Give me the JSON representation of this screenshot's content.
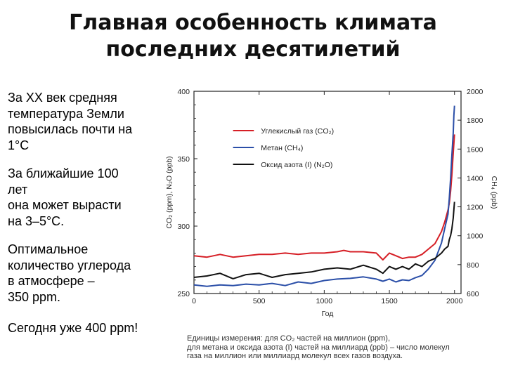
{
  "slide": {
    "title_line1": "Главная особенность климата",
    "title_line2": "последних десятилетий",
    "para1": "За XX век средняя\nтемпература Земли\nповысилась почти на\n1°С",
    "para2": "За ближайшие 100\nлет\nона может вырасти\nна 3–5°С.",
    "para3": "Оптимальное\nколичество углерода\nв атмосфере –\n350 ppm.",
    "para4": "Сегодня уже 400 ppm!",
    "footnote_line1": "Единицы измерения: для CO₂ частей на миллион (ppm),",
    "footnote_line2": "для метана и оксида азота (I) частей на миллиард (ppb) – число молекул",
    "footnote_line3": "газа на миллион или миллиард молекул всех газов воздуха."
  },
  "chart_data": {
    "type": "line",
    "xlabel": "Год",
    "ylabel_left": "CO₂ (ppm), N₂O (ppb)",
    "ylabel_right": "CH₄ (ppb)",
    "xlim": [
      0,
      2050
    ],
    "ylim_left": [
      250,
      400
    ],
    "ylim_right": [
      600,
      2000
    ],
    "x_ticks": [
      0,
      500,
      1000,
      1500,
      2000
    ],
    "y_ticks_left": [
      250,
      300,
      350,
      400
    ],
    "y_ticks_right": [
      600,
      800,
      1000,
      1200,
      1400,
      1600,
      1800,
      2000
    ],
    "legend_position": "top-center",
    "series": [
      {
        "name": "Углекислый газ (CO₂)",
        "axis": "left",
        "color": "#d61f26",
        "x": [
          0,
          100,
          200,
          300,
          400,
          500,
          600,
          700,
          800,
          900,
          1000,
          1100,
          1150,
          1200,
          1300,
          1400,
          1450,
          1500,
          1550,
          1600,
          1650,
          1700,
          1750,
          1800,
          1850,
          1900,
          1925,
          1950,
          1960,
          1970,
          1980,
          1990,
          2000
        ],
        "y": [
          278,
          277,
          279,
          277,
          278,
          279,
          279,
          280,
          279,
          280,
          280,
          281,
          282,
          281,
          281,
          280,
          275,
          280,
          278,
          276,
          277,
          277,
          279,
          283,
          287,
          296,
          303,
          312,
          317,
          326,
          338,
          354,
          368
        ]
      },
      {
        "name": "Метан (CH₄)",
        "axis": "right",
        "color": "#2b4fa8",
        "x": [
          0,
          100,
          200,
          300,
          400,
          500,
          600,
          700,
          800,
          900,
          1000,
          1100,
          1200,
          1300,
          1400,
          1450,
          1500,
          1550,
          1600,
          1650,
          1700,
          1750,
          1800,
          1850,
          1900,
          1925,
          1950,
          1960,
          1970,
          1980,
          1990,
          1995,
          2000
        ],
        "y": [
          660,
          650,
          660,
          655,
          665,
          660,
          670,
          655,
          680,
          670,
          690,
          700,
          705,
          715,
          700,
          685,
          700,
          680,
          695,
          690,
          710,
          725,
          770,
          830,
          950,
          1050,
          1150,
          1260,
          1400,
          1560,
          1710,
          1830,
          1900
        ]
      },
      {
        "name": "Оксид азота (I) (N₂O)",
        "axis": "left",
        "color": "#111111",
        "x": [
          0,
          100,
          200,
          300,
          400,
          500,
          600,
          700,
          800,
          900,
          1000,
          1100,
          1200,
          1300,
          1400,
          1450,
          1500,
          1550,
          1600,
          1650,
          1700,
          1750,
          1800,
          1850,
          1900,
          1925,
          1950,
          1960,
          1970,
          1980,
          1990,
          2000
        ],
        "y": [
          262,
          263,
          265,
          261,
          264,
          265,
          262,
          264,
          265,
          266,
          268,
          269,
          268,
          271,
          268,
          265,
          270,
          268,
          270,
          268,
          272,
          270,
          274,
          276,
          280,
          283,
          285,
          290,
          293,
          298,
          306,
          318
        ]
      }
    ]
  }
}
